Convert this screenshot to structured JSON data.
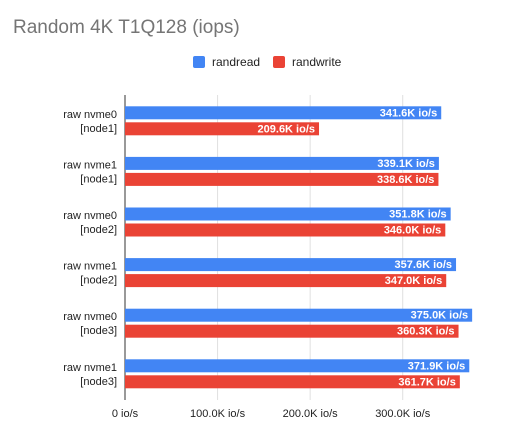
{
  "chart_data": {
    "type": "bar",
    "orientation": "horizontal",
    "title": "Random 4K T1Q128 (iops)",
    "categories": [
      [
        "raw nvme0",
        "[node1]"
      ],
      [
        "raw nvme1",
        "[node1]"
      ],
      [
        "raw nvme0",
        "[node2]"
      ],
      [
        "raw nvme1",
        "[node2]"
      ],
      [
        "raw nvme0",
        "[node3]"
      ],
      [
        "raw nvme1",
        "[node3]"
      ]
    ],
    "series": [
      {
        "name": "randread",
        "color": "#4285F4",
        "values": [
          341600,
          339100,
          351800,
          357600,
          375000,
          371900
        ],
        "labels": [
          "341.6K io/s",
          "339.1K io/s",
          "351.8K io/s",
          "357.6K io/s",
          "375.0K io/s",
          "371.9K io/s"
        ]
      },
      {
        "name": "randwrite",
        "color": "#EA4335",
        "values": [
          209600,
          338600,
          346000,
          347000,
          360300,
          361700
        ],
        "labels": [
          "209.6K io/s",
          "338.6K io/s",
          "346.0K io/s",
          "347.0K io/s",
          "360.3K io/s",
          "361.7K io/s"
        ]
      }
    ],
    "xlim": [
      0,
      400000
    ],
    "xticks": [
      0,
      100000,
      200000,
      300000
    ],
    "xtick_labels": [
      "0 io/s",
      "100.0K io/s",
      "200.0K io/s",
      "300.0K io/s"
    ],
    "grid": true,
    "legend_position": "top"
  }
}
